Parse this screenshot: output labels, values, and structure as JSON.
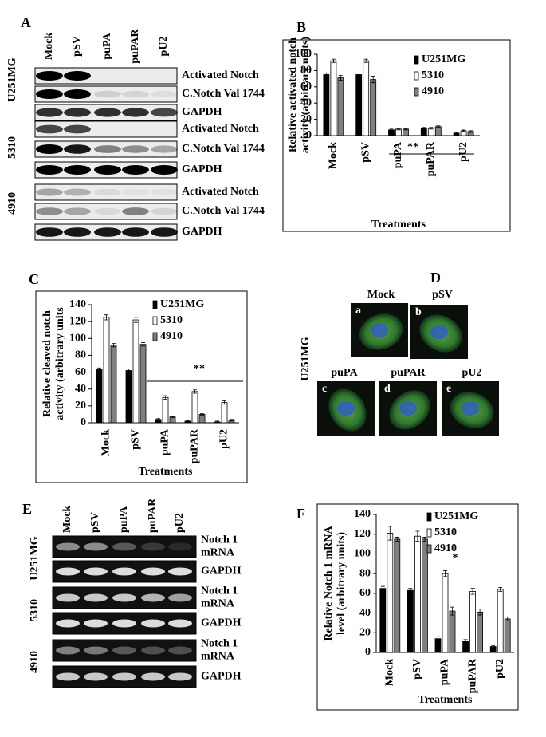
{
  "panels": {
    "A": {
      "label": "A",
      "lanes": [
        "Mock",
        "pSV",
        "puPA",
        "puPAR",
        "pU2"
      ],
      "groups": [
        {
          "name": "U251MG",
          "rows": [
            "Activated Notch",
            "C.Notch Val 1744",
            "GAPDH"
          ]
        },
        {
          "name": "5310",
          "rows": [
            "Activated Notch",
            "C.Notch Val 1744",
            "GAPDH"
          ]
        },
        {
          "name": "4910",
          "rows": [
            "Activated Notch",
            "C.Notch Val 1744",
            "GAPDH"
          ]
        }
      ]
    },
    "D": {
      "label": "D",
      "cell_line": "U251MG",
      "images": [
        {
          "letter": "a",
          "name": "Mock"
        },
        {
          "letter": "b",
          "name": "pSV"
        },
        {
          "letter": "c",
          "name": "puPA"
        },
        {
          "letter": "d",
          "name": "puPAR"
        },
        {
          "letter": "e",
          "name": "pU2"
        }
      ]
    },
    "E": {
      "label": "E",
      "lanes": [
        "Mock",
        "pSV",
        "puPA",
        "puPAR",
        "pU2"
      ],
      "groups": [
        {
          "name": "U251MG",
          "rows": [
            [
              "Notch 1",
              "mRNA"
            ],
            [
              "GAPDH"
            ]
          ]
        },
        {
          "name": "5310",
          "rows": [
            [
              "Notch 1",
              "mRNA"
            ],
            [
              "GAPDH"
            ]
          ]
        },
        {
          "name": "4910",
          "rows": [
            [
              "Notch 1",
              "mRNA"
            ],
            [
              "GAPDH"
            ]
          ]
        }
      ]
    }
  },
  "chart_data": [
    {
      "type": "bar",
      "panel_label": "B",
      "y_label": [
        "Relative activated notch",
        "activity (arbitrary units)"
      ],
      "x_label": "Treatments",
      "annotation": "**",
      "categories": [
        "Mock",
        "pSV",
        "puPA",
        "puPAR",
        "pU2"
      ],
      "series": [
        {
          "name": "U251MG",
          "color": "#000000",
          "values": [
            75,
            75,
            7,
            9,
            3
          ],
          "errors": [
            2,
            2,
            1,
            1,
            1
          ]
        },
        {
          "name": "5310",
          "color": "#ffffff",
          "values": [
            92,
            92,
            8,
            9,
            6
          ],
          "errors": [
            2,
            2,
            1,
            1,
            1
          ]
        },
        {
          "name": "4910",
          "color": "#808080",
          "values": [
            71,
            69,
            8,
            11,
            5
          ],
          "errors": [
            3,
            4,
            1,
            1,
            1
          ]
        }
      ],
      "ylim": [
        0,
        100
      ],
      "yticks": [
        0,
        20,
        40,
        60,
        80,
        100
      ],
      "legend": "upper right"
    },
    {
      "type": "bar",
      "panel_label": "C",
      "y_label": [
        "Relative cleaved notch",
        "activity (arbitrary units"
      ],
      "x_label": "Treatments",
      "annotation": "**",
      "categories": [
        "Mock",
        "pSV",
        "puPA",
        "puPAR",
        "pU2"
      ],
      "series": [
        {
          "name": "U251MG",
          "color": "#000000",
          "values": [
            63,
            62,
            4,
            2,
            1
          ],
          "errors": [
            2,
            2,
            1,
            1,
            1
          ]
        },
        {
          "name": "5310",
          "color": "#ffffff",
          "values": [
            125,
            122,
            30,
            37,
            24
          ],
          "errors": [
            3,
            3,
            2,
            2,
            2
          ]
        },
        {
          "name": "4910",
          "color": "#808080",
          "values": [
            92,
            93,
            7,
            10,
            3
          ],
          "errors": [
            2,
            2,
            1,
            1,
            1
          ]
        }
      ],
      "ylim": [
        0,
        140
      ],
      "yticks": [
        0,
        20,
        40,
        60,
        80,
        100,
        120,
        140
      ],
      "legend": "upper right"
    },
    {
      "type": "bar",
      "panel_label": "F",
      "y_label": [
        "Relative Notch 1 mRNA",
        "level (arbitrary units)"
      ],
      "x_label": "Treatments",
      "annotation": "*",
      "categories": [
        "Mock",
        "pSV",
        "puPA",
        "puPAR",
        "pU2"
      ],
      "series": [
        {
          "name": "U251MG",
          "color": "#000000",
          "values": [
            65,
            63,
            14,
            11,
            6
          ],
          "errors": [
            2,
            2,
            2,
            2,
            1
          ]
        },
        {
          "name": "5310",
          "color": "#ffffff",
          "values": [
            121,
            118,
            80,
            62,
            64
          ],
          "errors": [
            7,
            5,
            3,
            3,
            2
          ]
        },
        {
          "name": "4910",
          "color": "#808080",
          "values": [
            115,
            115,
            42,
            41,
            34
          ],
          "errors": [
            2,
            2,
            4,
            3,
            2
          ]
        }
      ],
      "ylim": [
        0,
        140
      ],
      "yticks": [
        0,
        20,
        40,
        60,
        80,
        100,
        120,
        140
      ],
      "legend": "upper right"
    }
  ]
}
